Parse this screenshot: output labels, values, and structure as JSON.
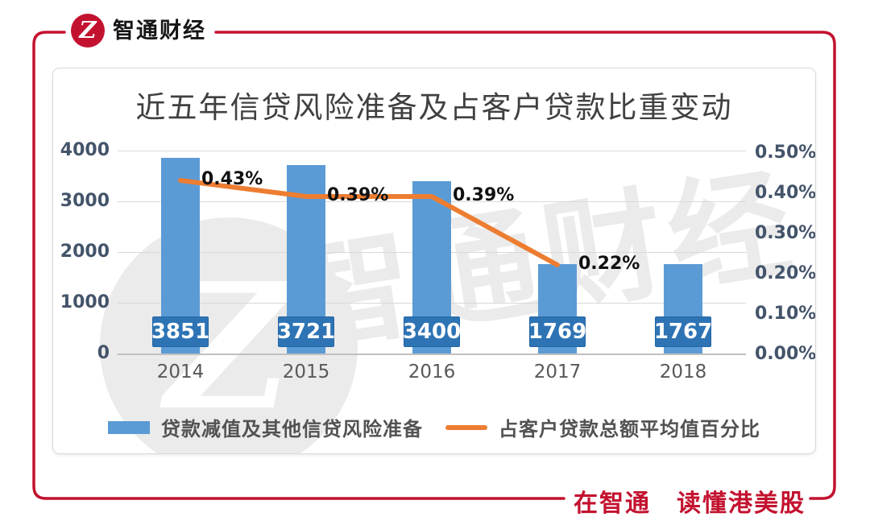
{
  "logo": {
    "brand": "智通财经",
    "monogram": "Z"
  },
  "slogan": "在智通　读懂港美股",
  "watermark": {
    "text": "智通财经",
    "monogram": "Z"
  },
  "chart_data": {
    "type": "combo",
    "title": "近五年信贷风险准备及占客户贷款比重变动",
    "categories": [
      "2014",
      "2015",
      "2016",
      "2017",
      "2018"
    ],
    "series": [
      {
        "name": "贷款减值及其他信贷风险准备",
        "type": "bar",
        "values": [
          3851,
          3721,
          3400,
          1769,
          1767
        ]
      },
      {
        "name": "占客户贷款总额平均值百分比",
        "type": "line",
        "values": [
          0.43,
          0.39,
          0.39,
          0.22,
          null
        ],
        "labels": [
          "0.43%",
          "0.39%",
          "0.39%",
          "0.22%"
        ]
      }
    ],
    "left_axis": {
      "min": 0,
      "max": 4000,
      "ticks": [
        "4000",
        "3000",
        "2000",
        "1000",
        "0"
      ]
    },
    "right_axis": {
      "min": 0,
      "max": 0.5,
      "ticks": [
        "0.50%",
        "0.40%",
        "0.30%",
        "0.20%",
        "0.10%",
        "0.00%"
      ]
    },
    "grid": true,
    "legend_position": "bottom"
  },
  "colors": {
    "brand_red": "#c3122f",
    "bar_blue": "#5b9bd5",
    "box_blue": "#2e74b5",
    "line_orange": "#ed7d31",
    "grid": "#d9d9d9",
    "axis_line": "#c0c0c0",
    "tick_text": "#44546a",
    "year_text": "#595959",
    "title_text": "#404040",
    "legend_text": "#525252",
    "label_text": "#111111",
    "watermark": "#ebebeb"
  }
}
